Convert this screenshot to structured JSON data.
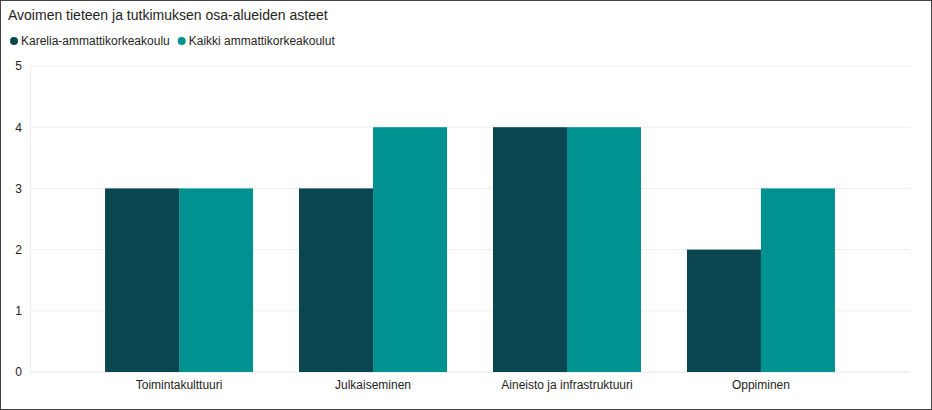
{
  "chart_data": {
    "type": "bar",
    "title": "Avoimen tieteen ja tutkimuksen osa-alueiden asteet",
    "categories": [
      "Toimintakulttuuri",
      "Julkaiseminen",
      "Aineisto ja infrastruktuuri",
      "Oppiminen"
    ],
    "series": [
      {
        "name": "Karelia-ammattikorkeakoulu",
        "color": "#0a4650",
        "values": [
          3,
          3,
          4,
          2
        ]
      },
      {
        "name": "Kaikki ammattikorkeakoulut",
        "color": "#009291",
        "values": [
          3,
          4,
          4,
          3
        ]
      }
    ],
    "ylim": [
      0,
      5
    ],
    "yticks": [
      0,
      1,
      2,
      3,
      4,
      5
    ],
    "grid": true,
    "legend": "top-left"
  }
}
